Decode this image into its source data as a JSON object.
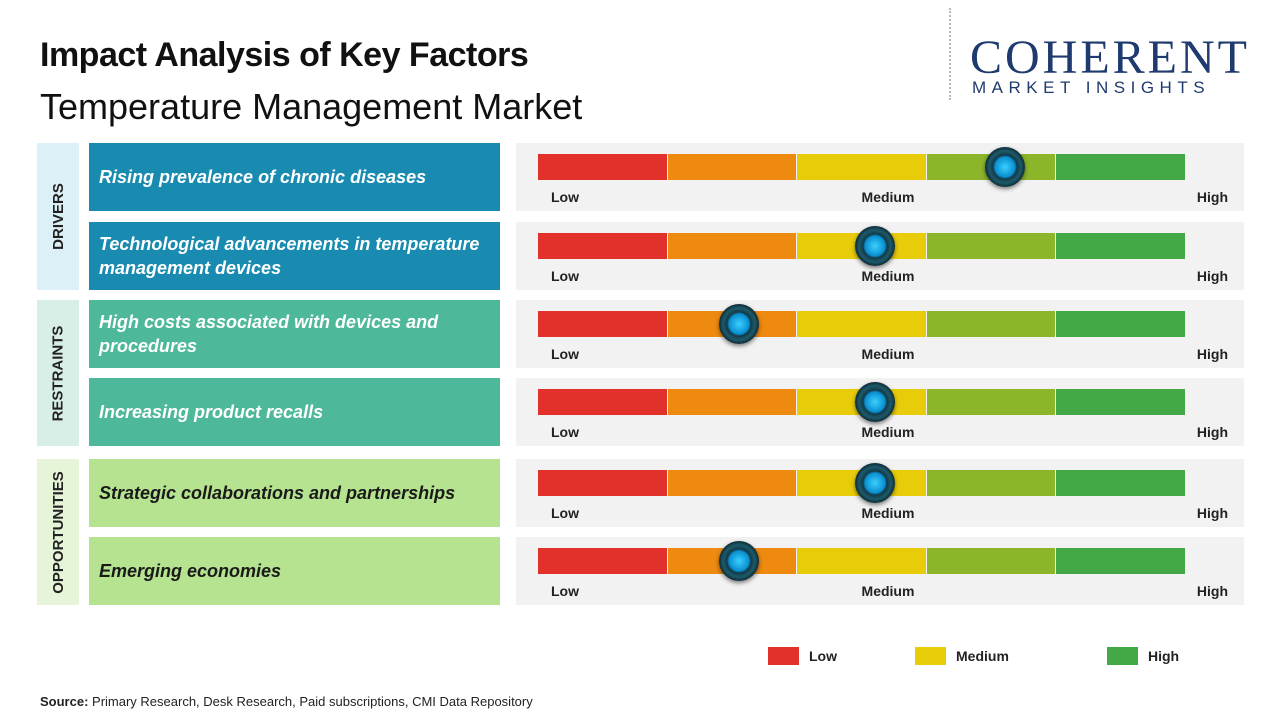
{
  "header": {
    "title": "Impact Analysis of Key Factors",
    "subtitle": "Temperature Management Market"
  },
  "logo": {
    "name": "COHERENT",
    "tagline": "MARKET INSIGHTS"
  },
  "scale": {
    "range": [
      0,
      100
    ],
    "labels": [
      "Low",
      "Medium",
      "High"
    ],
    "segment_colors": [
      "#e2312a",
      "#ee8a10",
      "#e8cc0a",
      "#8db52a",
      "#44a846"
    ]
  },
  "groups": [
    {
      "label": "DRIVERS",
      "box_color": "#dcf0f7",
      "factor_color": "#1a8bb0",
      "text_color": "#ffffff",
      "factors": [
        {
          "label": "Rising prevalence of chronic diseases",
          "position": 72
        },
        {
          "label": "Technological advancements in temperature management devices",
          "position": 52
        }
      ]
    },
    {
      "label": "RESTRAINTS",
      "box_color": "#d8efe8",
      "factor_color": "#4db89a",
      "text_color": "#ffffff",
      "factors": [
        {
          "label": "High costs associated with devices and procedures",
          "position": 31
        },
        {
          "label": "Increasing product recalls",
          "position": 52
        }
      ]
    },
    {
      "label": "OPPORTUNITIES",
      "box_color": "#e6f5d7",
      "factor_color": "#b5e38f",
      "text_color": "#1a1a1a",
      "factors": [
        {
          "label": "Strategic collaborations and partnerships",
          "position": 52
        },
        {
          "label": "Emerging economies",
          "position": 31
        }
      ]
    }
  ],
  "legend": [
    {
      "name": "Low",
      "color": "#e2312a"
    },
    {
      "name": "Medium",
      "color": "#e8cc0a"
    },
    {
      "name": "High",
      "color": "#44a846"
    }
  ],
  "source": {
    "label": "Source:",
    "text": "Primary Research, Desk Research, Paid subscriptions, CMI Data Repository"
  }
}
